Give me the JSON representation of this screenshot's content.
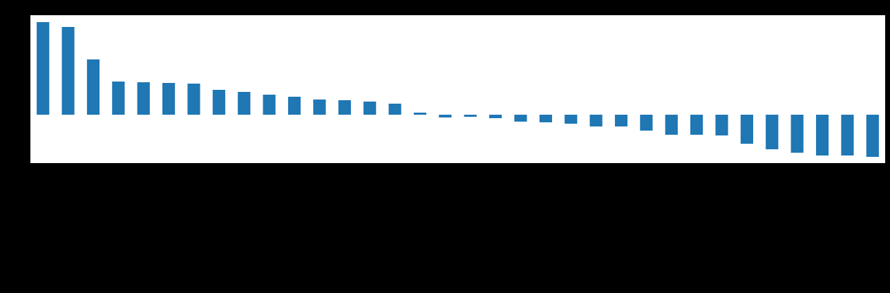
{
  "chart_data": {
    "type": "bar",
    "categories": [
      null,
      null,
      null,
      null,
      null,
      null,
      null,
      null,
      null,
      null,
      null,
      null,
      null,
      null,
      null,
      null,
      null,
      null,
      null,
      null,
      null,
      null,
      null,
      null,
      null,
      null,
      null,
      null,
      null,
      null,
      null,
      null,
      null,
      null
    ],
    "values": [
      13.4,
      12.7,
      8.0,
      4.8,
      4.7,
      4.6,
      4.5,
      3.6,
      3.3,
      2.9,
      2.6,
      2.2,
      2.1,
      1.9,
      1.6,
      0.3,
      -0.4,
      -0.3,
      -0.5,
      -1.0,
      -1.1,
      -1.3,
      -1.7,
      -1.7,
      -2.3,
      -2.9,
      -2.9,
      -3.0,
      -4.2,
      -5.0,
      -5.5,
      -5.9,
      -5.9,
      -6.1
    ],
    "color": "#1f77b4",
    "ylim": [
      -7,
      14.4
    ]
  }
}
